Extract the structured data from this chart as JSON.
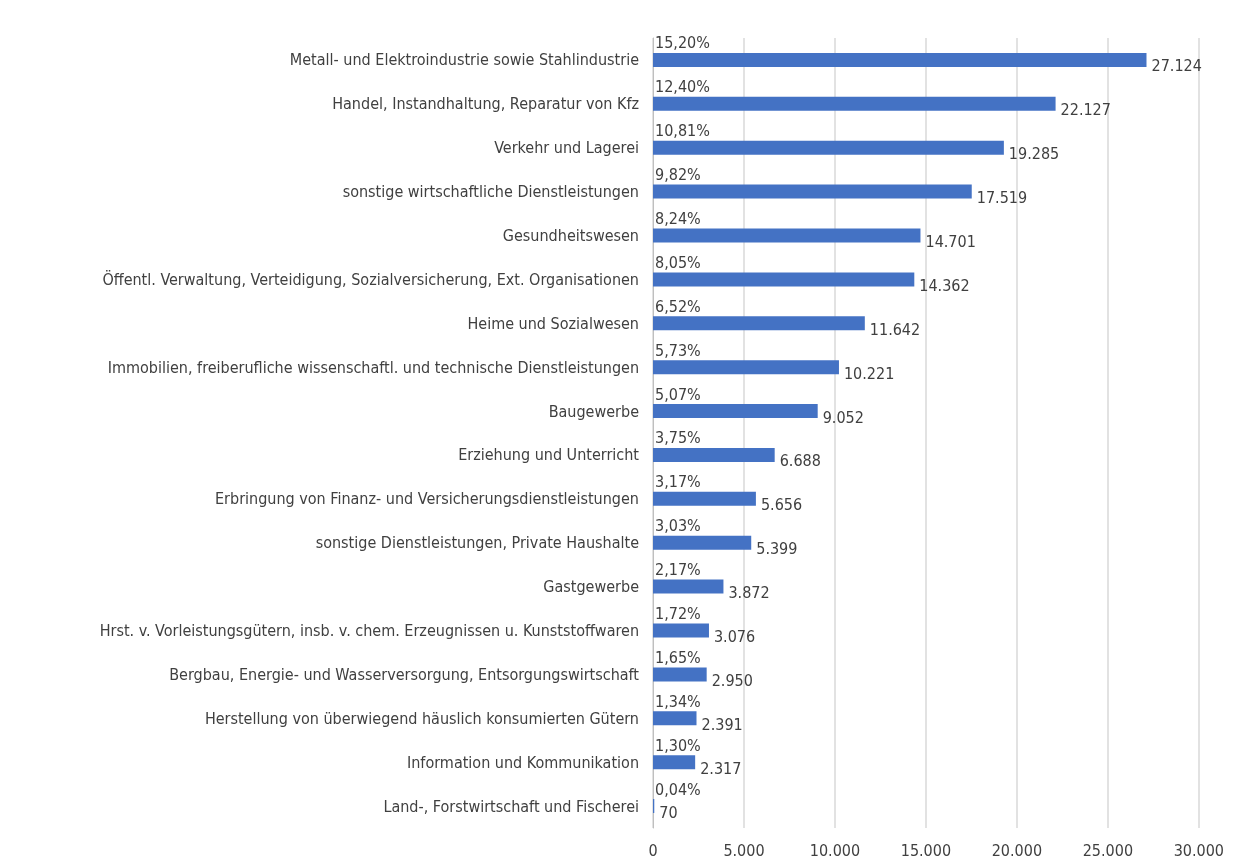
{
  "chart_data": {
    "type": "bar",
    "orientation": "horizontal",
    "color": "#4472c4",
    "categories": [
      "Metall- und Elektroindustrie sowie Stahlindustrie",
      "Handel, Instandhaltung, Reparatur von Kfz",
      "Verkehr und Lagerei",
      "sonstige wirtschaftliche Dienstleistungen",
      "Gesundheitswesen",
      "Öffentl. Verwaltung, Verteidigung, Sozialversicherung, Ext. Organisationen",
      "Heime und Sozialwesen",
      "Immobilien, freiberufliche wissenschaftl. und technische Dienstleistungen",
      "Baugewerbe",
      "Erziehung und Unterricht",
      "Erbringung von Finanz- und Versicherungsdienstleistungen",
      "sonstige Dienstleistungen, Private Haushalte",
      "Gastgewerbe",
      "Hrst. v. Vorleistungsgütern, insb. v. chem. Erzeugnissen u. Kunststoffwaren",
      "Bergbau, Energie- und Wasserversorgung, Entsorgungswirtschaft",
      "Herstellung von überwiegend häuslich konsumierten Gütern",
      "Information und Kommunikation",
      "Land-, Forstwirtschaft und Fischerei"
    ],
    "values": [
      27124,
      22127,
      19285,
      17519,
      14701,
      14362,
      11642,
      10221,
      9052,
      6688,
      5656,
      5399,
      3872,
      3076,
      2950,
      2391,
      2317,
      70
    ],
    "value_labels": [
      "27.124",
      "22.127",
      "19.285",
      "17.519",
      "14.701",
      "14.362",
      "11.642",
      "10.221",
      "9.052",
      "6.688",
      "5.656",
      "5.399",
      "3.872",
      "3.076",
      "2.950",
      "2.391",
      "2.317",
      "70"
    ],
    "annotations": [
      "15,20%",
      "12,40%",
      "10,81%",
      "9,82%",
      "8,24%",
      "8,05%",
      "6,52%",
      "5,73%",
      "5,07%",
      "3,75%",
      "3,17%",
      "3,03%",
      "2,17%",
      "1,72%",
      "1,65%",
      "1,34%",
      "1,30%",
      "0,04%"
    ],
    "xlim": [
      0,
      30000
    ],
    "xticks": [
      0,
      {
        "value": 5000,
        "label": "5.000"
      },
      {
        "value": 10000,
        "label": "10.000"
      },
      {
        "value": 15000,
        "label": "15.000"
      },
      {
        "value": 20000,
        "label": "20.000"
      },
      {
        "value": 25000,
        "label": "25.000"
      },
      {
        "value": 30000,
        "label": "30.000"
      }
    ],
    "grid": "x"
  }
}
